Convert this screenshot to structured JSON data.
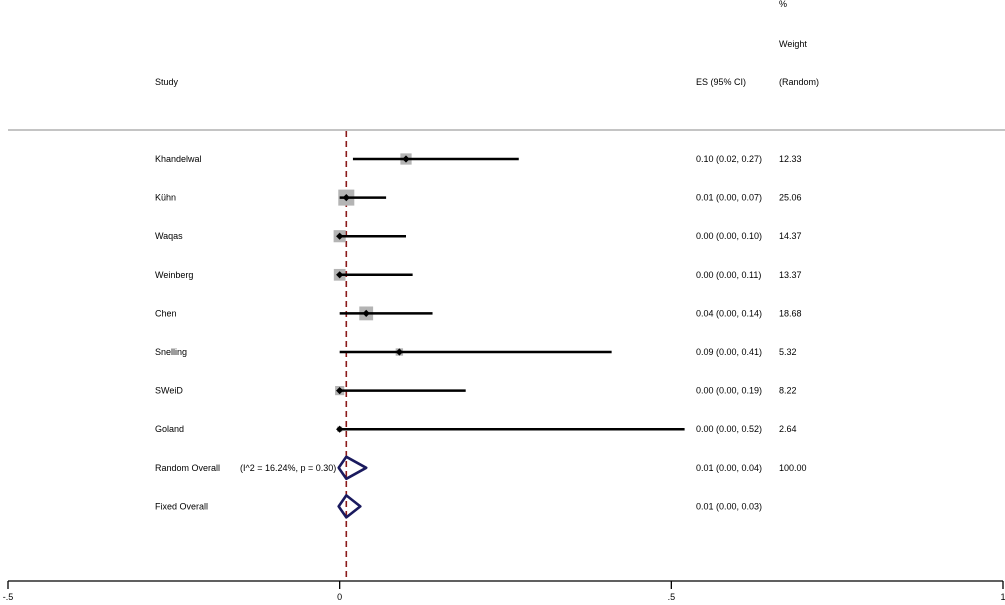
{
  "header": {
    "study": "Study",
    "es": "ES (95% CI)",
    "weight_line1": "%",
    "weight_line2": "Weight",
    "weight_line3": "(Random)"
  },
  "chart_data": {
    "type": "forest",
    "xlim": [
      -0.5,
      1
    ],
    "x_ticks": [
      {
        "value": -0.5,
        "label": "-.5"
      },
      {
        "value": 0,
        "label": "0"
      },
      {
        "value": 0.5,
        "label": ".5"
      },
      {
        "value": 1,
        "label": "1"
      }
    ],
    "null_line": 0,
    "pooled_reference": 0.01,
    "studies": [
      {
        "name": "Khandelwal",
        "es": 0.1,
        "lo": 0.02,
        "hi": 0.27,
        "es_text": "0.10 (0.02, 0.27)",
        "weight": "12.33"
      },
      {
        "name": "Kühn",
        "es": 0.01,
        "lo": 0.0,
        "hi": 0.07,
        "es_text": "0.01 (0.00, 0.07)",
        "weight": "25.06"
      },
      {
        "name": "Waqas",
        "es": 0.0,
        "lo": 0.0,
        "hi": 0.1,
        "es_text": "0.00 (0.00, 0.10)",
        "weight": "14.37"
      },
      {
        "name": "Weinberg",
        "es": 0.0,
        "lo": 0.0,
        "hi": 0.11,
        "es_text": "0.00 (0.00, 0.11)",
        "weight": "13.37"
      },
      {
        "name": "Chen",
        "es": 0.04,
        "lo": 0.0,
        "hi": 0.14,
        "es_text": "0.04 (0.00, 0.14)",
        "weight": "18.68"
      },
      {
        "name": "Snelling",
        "es": 0.09,
        "lo": 0.0,
        "hi": 0.41,
        "es_text": "0.09 (0.00, 0.41)",
        "weight": "5.32"
      },
      {
        "name": "SWeiD",
        "es": 0.0,
        "lo": 0.0,
        "hi": 0.19,
        "es_text": "0.00 (0.00, 0.19)",
        "weight": "8.22"
      },
      {
        "name": "Goland",
        "es": 0.0,
        "lo": 0.0,
        "hi": 0.52,
        "es_text": "0.00 (0.00, 0.52)",
        "weight": "2.64"
      }
    ],
    "overall": [
      {
        "name": "Random Overall",
        "stats": "(I^2 = 16.24%, p = 0.30)",
        "es": 0.01,
        "lo": 0.0,
        "hi": 0.04,
        "es_text": "0.01 (0.00, 0.04)",
        "weight": "100.00"
      },
      {
        "name": "Fixed Overall",
        "stats": "",
        "es": 0.01,
        "lo": 0.0,
        "hi": 0.03,
        "es_text": "0.01 (0.00, 0.03)",
        "weight": ""
      }
    ],
    "colors": {
      "ci_line": "#000000",
      "weight_box": "#b4b4b4",
      "point": "#000000",
      "diamond": "#1a1a5e",
      "pooled_line": "#8b1a1a",
      "separator": "#b0b0b0"
    }
  }
}
